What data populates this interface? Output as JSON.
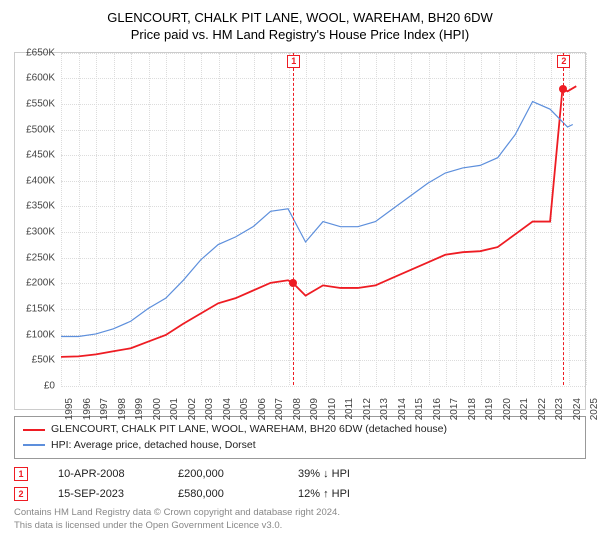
{
  "title": {
    "line1": "GLENCOURT, CHALK PIT LANE, WOOL, WAREHAM, BH20 6DW",
    "line2": "Price paid vs. HM Land Registry's House Price Index (HPI)"
  },
  "chart": {
    "type": "line",
    "xlim": [
      1995,
      2025
    ],
    "ylim": [
      0,
      650000
    ],
    "ytick_step": 50000,
    "yticks": [
      "£0",
      "£50K",
      "£100K",
      "£150K",
      "£200K",
      "£250K",
      "£300K",
      "£350K",
      "£400K",
      "£450K",
      "£500K",
      "£550K",
      "£600K",
      "£650K"
    ],
    "xticks": [
      1995,
      1996,
      1997,
      1998,
      1999,
      2000,
      2001,
      2002,
      2003,
      2004,
      2005,
      2006,
      2007,
      2008,
      2009,
      2010,
      2011,
      2012,
      2013,
      2014,
      2015,
      2016,
      2017,
      2018,
      2019,
      2020,
      2021,
      2022,
      2023,
      2024,
      2025
    ],
    "grid_color": "#dcdcdc",
    "background_color": "#ffffff",
    "series": [
      {
        "name": "property",
        "color": "#ee1c23",
        "width": 1.8,
        "label": "GLENCOURT, CHALK PIT LANE, WOOL, WAREHAM, BH20 6DW (detached house)",
        "data": [
          [
            1995,
            55000
          ],
          [
            1996,
            56000
          ],
          [
            1997,
            60000
          ],
          [
            1998,
            66000
          ],
          [
            1999,
            72000
          ],
          [
            2000,
            85000
          ],
          [
            2001,
            98000
          ],
          [
            2002,
            120000
          ],
          [
            2003,
            140000
          ],
          [
            2004,
            160000
          ],
          [
            2005,
            170000
          ],
          [
            2006,
            185000
          ],
          [
            2007,
            200000
          ],
          [
            2008,
            205000
          ],
          [
            2008.27,
            200000
          ],
          [
            2009,
            175000
          ],
          [
            2010,
            195000
          ],
          [
            2011,
            190000
          ],
          [
            2012,
            190000
          ],
          [
            2013,
            195000
          ],
          [
            2014,
            210000
          ],
          [
            2015,
            225000
          ],
          [
            2016,
            240000
          ],
          [
            2017,
            255000
          ],
          [
            2018,
            260000
          ],
          [
            2019,
            262000
          ],
          [
            2020,
            270000
          ],
          [
            2021,
            295000
          ],
          [
            2022,
            320000
          ],
          [
            2023,
            320000
          ],
          [
            2023.71,
            580000
          ],
          [
            2024,
            575000
          ],
          [
            2024.5,
            585000
          ]
        ]
      },
      {
        "name": "hpi",
        "color": "#5d8fdc",
        "width": 1.2,
        "label": "HPI: Average price, detached house, Dorset",
        "data": [
          [
            1995,
            95000
          ],
          [
            1996,
            95000
          ],
          [
            1997,
            100000
          ],
          [
            1998,
            110000
          ],
          [
            1999,
            125000
          ],
          [
            2000,
            150000
          ],
          [
            2001,
            170000
          ],
          [
            2002,
            205000
          ],
          [
            2003,
            245000
          ],
          [
            2004,
            275000
          ],
          [
            2005,
            290000
          ],
          [
            2006,
            310000
          ],
          [
            2007,
            340000
          ],
          [
            2008,
            345000
          ],
          [
            2009,
            280000
          ],
          [
            2010,
            320000
          ],
          [
            2011,
            310000
          ],
          [
            2012,
            310000
          ],
          [
            2013,
            320000
          ],
          [
            2014,
            345000
          ],
          [
            2015,
            370000
          ],
          [
            2016,
            395000
          ],
          [
            2017,
            415000
          ],
          [
            2018,
            425000
          ],
          [
            2019,
            430000
          ],
          [
            2020,
            445000
          ],
          [
            2021,
            490000
          ],
          [
            2022,
            555000
          ],
          [
            2023,
            540000
          ],
          [
            2024,
            505000
          ],
          [
            2024.3,
            510000
          ]
        ]
      }
    ],
    "markers": [
      {
        "n": "1",
        "x": 2008.27,
        "y": 200000
      },
      {
        "n": "2",
        "x": 2023.71,
        "y": 580000
      }
    ]
  },
  "legend": {
    "items": [
      {
        "color": "#ee1c23",
        "label_path": "chart.series.0.label"
      },
      {
        "color": "#5d8fdc",
        "label_path": "chart.series.1.label"
      }
    ]
  },
  "transactions": [
    {
      "n": "1",
      "date": "10-APR-2008",
      "price": "£200,000",
      "diff": "39% ↓ HPI"
    },
    {
      "n": "2",
      "date": "15-SEP-2023",
      "price": "£580,000",
      "diff": "12% ↑ HPI"
    }
  ],
  "footer": {
    "line1": "Contains HM Land Registry data © Crown copyright and database right 2024.",
    "line2": "This data is licensed under the Open Government Licence v3.0."
  }
}
